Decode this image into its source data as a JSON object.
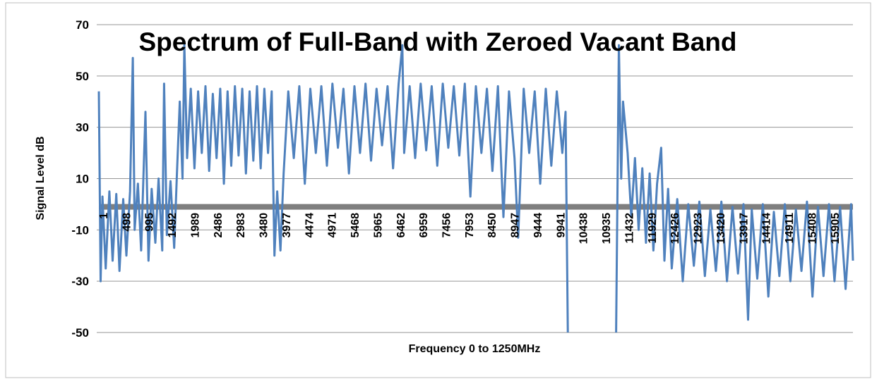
{
  "chart_data": {
    "type": "line",
    "title": "Spectrum of Full-Band with Zeroed Vacant Band",
    "y_label": "Signal Level dB",
    "x_label": "Frequency 0 to 1250MHz",
    "xlim": [
      1,
      16400
    ],
    "xticks": [
      1,
      498,
      995,
      1492,
      1989,
      2486,
      2983,
      3480,
      3977,
      4474,
      4971,
      5468,
      5965,
      6462,
      6959,
      7456,
      7953,
      8450,
      8947,
      9444,
      9941,
      10438,
      10935,
      11432,
      11929,
      12426,
      12923,
      13420,
      13917,
      14414,
      14911,
      15408,
      15905
    ],
    "x_axis_at": 0,
    "ylim": [
      -50,
      70
    ],
    "yticks": [
      -50,
      -30,
      -10,
      10,
      30,
      50,
      70
    ],
    "grid": true,
    "series": [
      {
        "color": "#7f7f7f",
        "x": [
          1,
          16400
        ],
        "values": [
          -1,
          -1
        ]
      },
      {
        "color": "#4f81bd",
        "x": [
          1,
          40,
          80,
          150,
          230,
          300,
          380,
          450,
          530,
          600,
          680,
          740,
          780,
          850,
          920,
          1015,
          1080,
          1150,
          1230,
          1300,
          1380,
          1420,
          1480,
          1560,
          1640,
          1700,
          1760,
          1820,
          1860,
          1920,
          2000,
          2080,
          2160,
          2240,
          2320,
          2400,
          2480,
          2560,
          2640,
          2720,
          2800,
          2880,
          2960,
          3040,
          3120,
          3200,
          3280,
          3360,
          3440,
          3520,
          3600,
          3680,
          3760,
          3820,
          3880,
          3950,
          4020,
          4120,
          4240,
          4360,
          4480,
          4600,
          4720,
          4840,
          4960,
          5080,
          5200,
          5320,
          5440,
          5560,
          5680,
          5800,
          5920,
          6040,
          6160,
          6280,
          6400,
          6520,
          6600,
          6640,
          6760,
          6880,
          7000,
          7120,
          7240,
          7360,
          7480,
          7600,
          7720,
          7840,
          7960,
          8080,
          8200,
          8320,
          8440,
          8560,
          8680,
          8800,
          8920,
          9040,
          9120,
          9240,
          9360,
          9480,
          9600,
          9720,
          9840,
          9960,
          10080,
          10150,
          10200,
          10300,
          11250,
          11310,
          11360,
          11400,
          11500,
          11580,
          11660,
          11740,
          11820,
          11900,
          11980,
          12060,
          12140,
          12230,
          12300,
          12380,
          12460,
          12580,
          12700,
          12820,
          12940,
          13060,
          13180,
          13300,
          13420,
          13540,
          13660,
          13780,
          13900,
          14020,
          14120,
          14200,
          14320,
          14440,
          14560,
          14680,
          14800,
          14920,
          15040,
          15160,
          15280,
          15400,
          15520,
          15640,
          15760,
          15880,
          16000,
          16120,
          16240,
          16360,
          16400
        ],
        "values": [
          44,
          -30,
          3,
          -25,
          5,
          -22,
          4,
          -26,
          2,
          -20,
          5,
          57,
          -10,
          8,
          -18,
          36,
          -22,
          6,
          -15,
          10,
          -18,
          47,
          -12,
          9,
          -17,
          12,
          40,
          10,
          62,
          18,
          45,
          14,
          44,
          20,
          46,
          13,
          43,
          18,
          45,
          8,
          44,
          15,
          46,
          19,
          45,
          12,
          44,
          17,
          46,
          14,
          45,
          20,
          44,
          -20,
          5,
          -18,
          12,
          44,
          18,
          46,
          8,
          45,
          20,
          46,
          15,
          47,
          22,
          45,
          12,
          46,
          20,
          47,
          17,
          45,
          23,
          46,
          14,
          47,
          62,
          20,
          46,
          18,
          47,
          21,
          46,
          15,
          47,
          22,
          46,
          19,
          47,
          3,
          46,
          20,
          45,
          13,
          46,
          -5,
          44,
          18,
          -13,
          45,
          20,
          44,
          8,
          45,
          15,
          44,
          20,
          36,
          -50,
          null,
          -50,
          62,
          10,
          40,
          20,
          -5,
          18,
          -10,
          14,
          -15,
          12,
          -18,
          8,
          22,
          -22,
          6,
          -25,
          2,
          -30,
          0,
          -24,
          1,
          -28,
          -2,
          -26,
          1,
          -30,
          -1,
          -27,
          0,
          -45,
          -2,
          -29,
          0,
          -36,
          -3,
          -28,
          0,
          -30,
          -2,
          -26,
          1,
          -36,
          -1,
          -28,
          0,
          -30,
          -1,
          -33,
          0,
          -22
        ]
      }
    ]
  }
}
